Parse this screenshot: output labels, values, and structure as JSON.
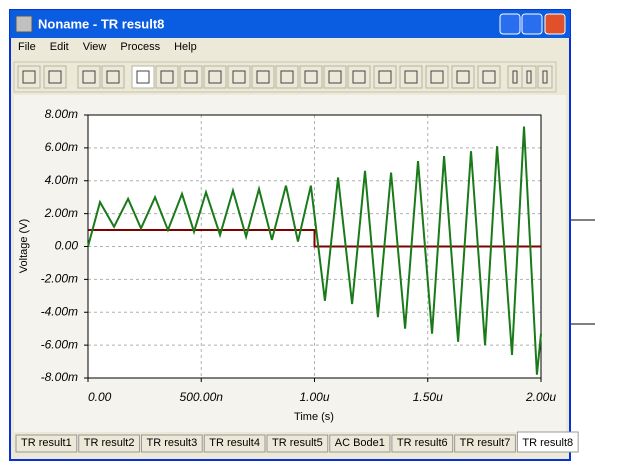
{
  "window": {
    "title": "Noname - TR result8"
  },
  "menu": [
    "File",
    "Edit",
    "View",
    "Process",
    "Help"
  ],
  "tabs": [
    "TR result1",
    "TR result2",
    "TR result3",
    "TR result4",
    "TR result5",
    "AC Bode1",
    "TR result6",
    "TR result7",
    "TR result8"
  ],
  "chart_data": {
    "type": "line",
    "x_label": "Time (s)",
    "y_label": "Voltage (V)",
    "xlim": [
      0,
      2e-06
    ],
    "ylim": [
      -0.008,
      0.008
    ],
    "grid": true,
    "xticks": [
      {
        "value": 0,
        "label": "0.00"
      },
      {
        "value": 5e-07,
        "label": "500.00n"
      },
      {
        "value": 1e-06,
        "label": "1.00u"
      },
      {
        "value": 1.5e-06,
        "label": "1.50u"
      },
      {
        "value": 2e-06,
        "label": "2.00u"
      }
    ],
    "yticks": [
      {
        "value": -0.008,
        "label": "-8.00m"
      },
      {
        "value": -0.006,
        "label": "-6.00m"
      },
      {
        "value": -0.004,
        "label": "-4.00m"
      },
      {
        "value": -0.002,
        "label": "-2.00m"
      },
      {
        "value": 0,
        "label": "0.00"
      },
      {
        "value": 0.002,
        "label": "2.00m"
      },
      {
        "value": 0.004,
        "label": "4.00m"
      },
      {
        "value": 0.006,
        "label": "6.00m"
      },
      {
        "value": 0.008,
        "label": "8.00m"
      }
    ],
    "series": [
      {
        "color": "#1a7a1a",
        "x": [
          0,
          5.3e-08,
          1.15e-07,
          1.77e-07,
          2.34e-07,
          2.96e-07,
          3.53e-07,
          4.15e-07,
          4.68e-07,
          5.21e-07,
          5.83e-07,
          6.4e-07,
          6.98e-07,
          7.55e-07,
          8.12e-07,
          8.74e-07,
          9.27e-07,
          9.84e-07,
          1.046e-06,
          1.104e-06,
          1.166e-06,
          1.223e-06,
          1.28e-06,
          1.338e-06,
          1.4e-06,
          1.457e-06,
          1.519e-06,
          1.572e-06,
          1.634e-06,
          1.691e-06,
          1.753e-06,
          1.806e-06,
          1.872e-06,
          1.925e-06,
          1.982e-06,
          2e-06
        ],
        "values": [
          0,
          0.0027,
          0.0012,
          0.0029,
          0.0011,
          0.003,
          0.001,
          0.0032,
          0.0009,
          0.0033,
          0.0007,
          0.0034,
          0.0006,
          0.0035,
          0.0004,
          0.0037,
          0.0003,
          0.0037,
          -0.0033,
          0.0042,
          -0.0035,
          0.0046,
          -0.0043,
          0.0045,
          -0.005,
          0.0052,
          -0.0053,
          0.0055,
          -0.0058,
          0.0058,
          -0.006,
          0.0061,
          -0.0066,
          0.0073,
          -0.0078,
          -0.0053
        ]
      },
      {
        "color": "#800000",
        "x": [
          0,
          1e-06,
          1e-06,
          2e-06
        ],
        "values": [
          0.001,
          0.001,
          0,
          0
        ]
      }
    ]
  }
}
